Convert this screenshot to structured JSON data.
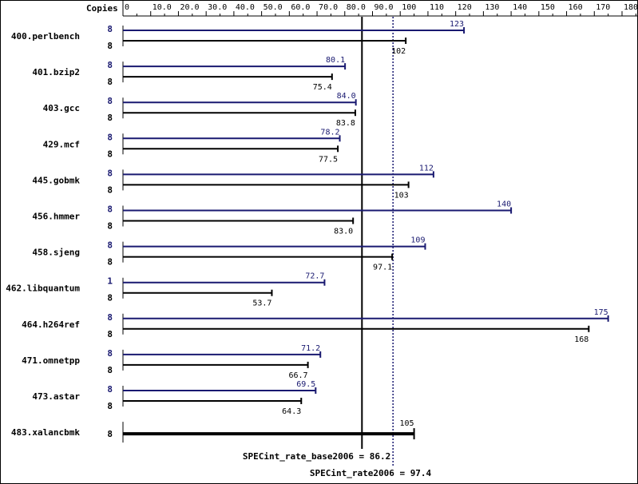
{
  "chart_data": {
    "type": "bar",
    "orientation": "horizontal",
    "header_label": "Copies",
    "xlim": [
      0,
      180
    ],
    "ticks": [
      "0",
      "10.0",
      "20.0",
      "30.0",
      "40.0",
      "50.0",
      "60.0",
      "70.0",
      "80.0",
      "90.0",
      "100",
      "110",
      "120",
      "130",
      "140",
      "150",
      "160",
      "170",
      "180"
    ],
    "colors": {
      "peak": "#191970",
      "base": "#000000"
    },
    "benchmarks": [
      {
        "name": "400.perlbench",
        "peak_copies": "8",
        "peak": 123,
        "peak_label": "123",
        "base_copies": "8",
        "base": 102,
        "base_label": "102"
      },
      {
        "name": "401.bzip2",
        "peak_copies": "8",
        "peak": 80.1,
        "peak_label": "80.1",
        "base_copies": "8",
        "base": 75.4,
        "base_label": "75.4"
      },
      {
        "name": "403.gcc",
        "peak_copies": "8",
        "peak": 84.0,
        "peak_label": "84.0",
        "base_copies": "8",
        "base": 83.8,
        "base_label": "83.8"
      },
      {
        "name": "429.mcf",
        "peak_copies": "8",
        "peak": 78.2,
        "peak_label": "78.2",
        "base_copies": "8",
        "base": 77.5,
        "base_label": "77.5"
      },
      {
        "name": "445.gobmk",
        "peak_copies": "8",
        "peak": 112,
        "peak_label": "112",
        "base_copies": "8",
        "base": 103,
        "base_label": "103"
      },
      {
        "name": "456.hmmer",
        "peak_copies": "8",
        "peak": 140,
        "peak_label": "140",
        "base_copies": "8",
        "base": 83.0,
        "base_label": "83.0"
      },
      {
        "name": "458.sjeng",
        "peak_copies": "8",
        "peak": 109,
        "peak_label": "109",
        "base_copies": "8",
        "base": 97.1,
        "base_label": "97.1"
      },
      {
        "name": "462.libquantum",
        "peak_copies": "1",
        "peak": 72.7,
        "peak_label": "72.7",
        "base_copies": "8",
        "base": 53.7,
        "base_label": "53.7"
      },
      {
        "name": "464.h264ref",
        "peak_copies": "8",
        "peak": 175,
        "peak_label": "175",
        "base_copies": "8",
        "base": 168,
        "base_label": "168"
      },
      {
        "name": "471.omnetpp",
        "peak_copies": "8",
        "peak": 71.2,
        "peak_label": "71.2",
        "base_copies": "8",
        "base": 66.7,
        "base_label": "66.7"
      },
      {
        "name": "473.astar",
        "peak_copies": "8",
        "peak": 69.5,
        "peak_label": "69.5",
        "base_copies": "8",
        "base": 64.3,
        "base_label": "64.3"
      },
      {
        "name": "483.xalancbmk",
        "peak_copies": null,
        "peak": null,
        "peak_label": null,
        "base_copies": "8",
        "base": 105,
        "base_label": "105"
      }
    ],
    "reference_lines": {
      "base": {
        "value": 86.2,
        "label": "SPECint_rate_base2006 = 86.2"
      },
      "peak": {
        "value": 97.4,
        "label": "SPECint_rate2006 = 97.4"
      }
    }
  }
}
